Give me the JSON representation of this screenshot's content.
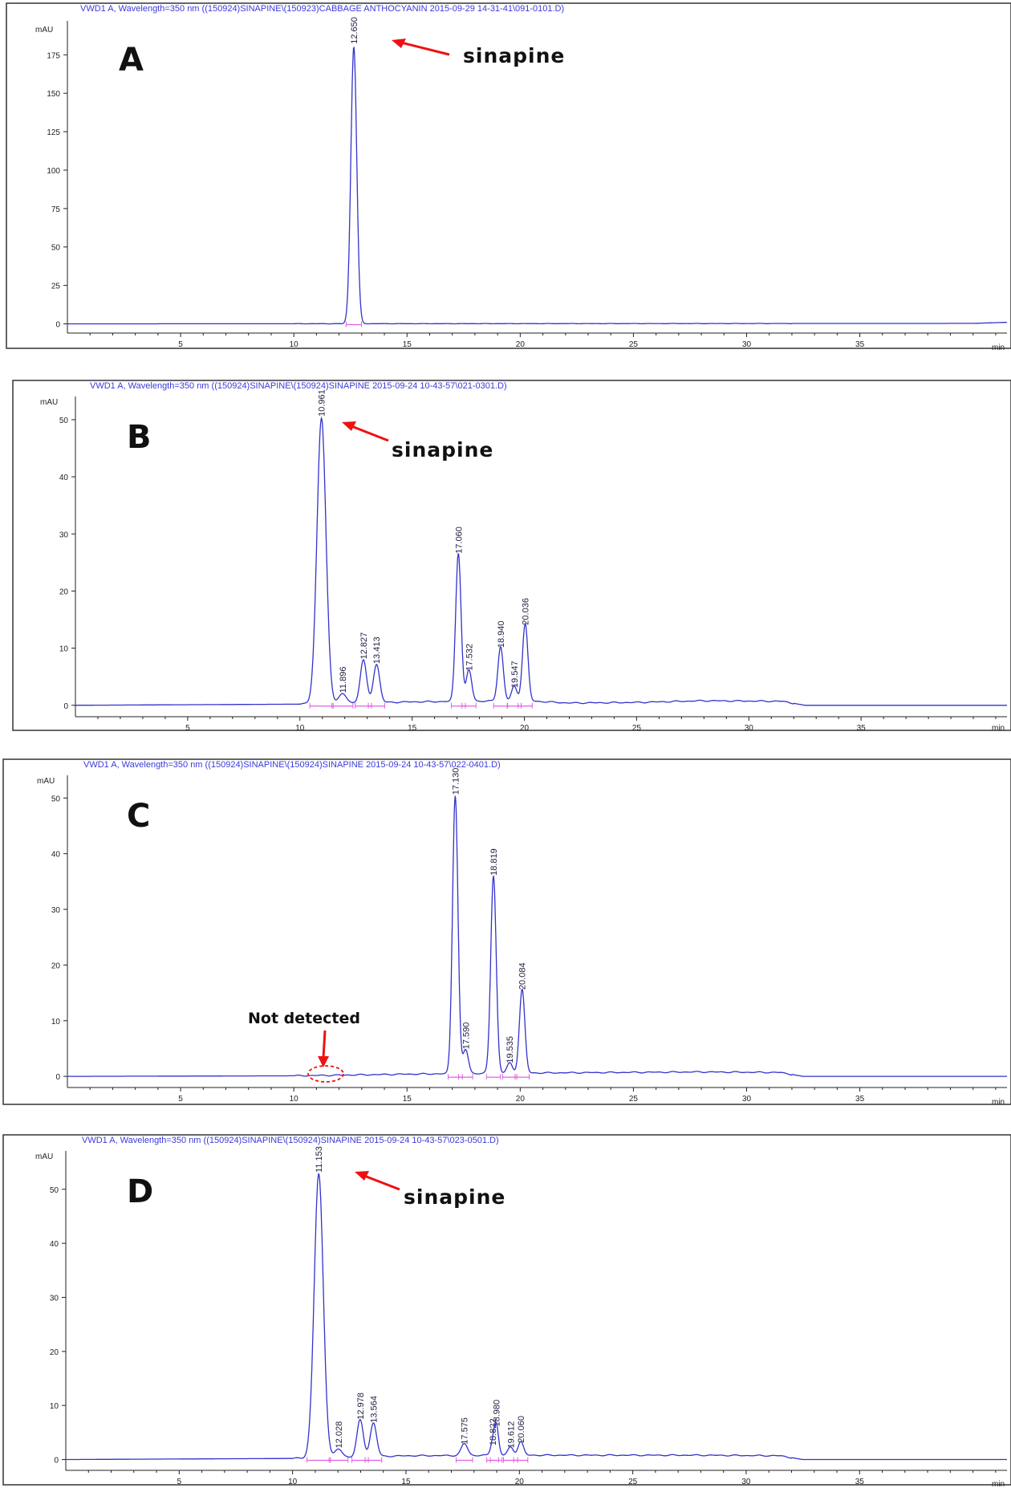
{
  "chart_data": [
    {
      "type": "line",
      "panel_label": "A",
      "title": "VWD1 A, Wavelength=350 nm ((150924)SINAPINE\\(150923)CABBAGE ANTHOCYANIN 2015-09-29 14-31-41\\091-0101.D)",
      "xlabel": "min",
      "ylabel": "mAU",
      "xlim": [
        0,
        41.5
      ],
      "ylim": [
        -6,
        195
      ],
      "xticks": [
        5,
        10,
        15,
        20,
        25,
        30,
        35
      ],
      "yticks": [
        0,
        25,
        50,
        75,
        100,
        125,
        150,
        175
      ],
      "peaks": [
        {
          "rt": 12.65,
          "height": 180,
          "width": 0.13,
          "label": "12.650"
        }
      ],
      "drift": [
        [
          0,
          0
        ],
        [
          40,
          0.3
        ],
        [
          41.5,
          1.0
        ]
      ],
      "annotations": [
        {
          "text": "sinapine",
          "arrow_to_rt": 12.65
        }
      ],
      "color": "#3333cc"
    },
    {
      "type": "line",
      "panel_label": "B",
      "title": "VWD1 A, Wavelength=350 nm ((150924)SINAPINE\\(150924)SINAPINE 2015-09-24 10-43-57\\021-0301.D)",
      "xlabel": "min",
      "ylabel": "mAU",
      "xlim": [
        0,
        41.5
      ],
      "ylim": [
        -2,
        53.5
      ],
      "xticks": [
        5,
        10,
        15,
        20,
        25,
        30,
        35
      ],
      "yticks": [
        0,
        10,
        20,
        30,
        40,
        50
      ],
      "peaks": [
        {
          "rt": 10.961,
          "height": 50,
          "width": 0.2,
          "label": "10.961"
        },
        {
          "rt": 11.896,
          "height": 1.6,
          "width": 0.18,
          "label": "11.896"
        },
        {
          "rt": 12.827,
          "height": 7.5,
          "width": 0.14,
          "label": "12.827"
        },
        {
          "rt": 13.413,
          "height": 6.7,
          "width": 0.14,
          "label": "13.413"
        },
        {
          "rt": 17.06,
          "height": 26,
          "width": 0.12,
          "label": "17.060"
        },
        {
          "rt": 17.532,
          "height": 5.5,
          "width": 0.12,
          "label": "17.532"
        },
        {
          "rt": 18.94,
          "height": 9.5,
          "width": 0.12,
          "label": "18.940"
        },
        {
          "rt": 19.547,
          "height": 2.5,
          "width": 0.12,
          "label": "19.547"
        },
        {
          "rt": 20.036,
          "height": 13.5,
          "width": 0.12,
          "label": "20.036"
        }
      ],
      "drift": [
        [
          0,
          0
        ],
        [
          10,
          0.2
        ],
        [
          15,
          0.6
        ],
        [
          20,
          0.8
        ],
        [
          22,
          0.4
        ],
        [
          25,
          0.5
        ],
        [
          28,
          0.8
        ],
        [
          31.5,
          0.7
        ],
        [
          32.5,
          0
        ],
        [
          41.5,
          0
        ]
      ],
      "annotations": [
        {
          "text": "sinapine",
          "arrow_to_rt": 10.961
        }
      ],
      "color": "#3333cc"
    },
    {
      "type": "line",
      "panel_label": "C",
      "title": "VWD1 A, Wavelength=350 nm ((150924)SINAPINE\\(150924)SINAPINE 2015-09-24 10-43-57\\022-0401.D)",
      "xlabel": "min",
      "ylabel": "mAU",
      "xlim": [
        0,
        41.5
      ],
      "ylim": [
        -2,
        53.5
      ],
      "xticks": [
        5,
        10,
        15,
        20,
        25,
        30,
        35
      ],
      "yticks": [
        0,
        10,
        20,
        30,
        40,
        50
      ],
      "peaks": [
        {
          "rt": 17.13,
          "height": 50,
          "width": 0.12,
          "label": "17.130"
        },
        {
          "rt": 17.59,
          "height": 4.3,
          "width": 0.12,
          "label": "17.590"
        },
        {
          "rt": 18.819,
          "height": 35.5,
          "width": 0.12,
          "label": "18.819"
        },
        {
          "rt": 19.535,
          "height": 1.8,
          "width": 0.12,
          "label": "19.535"
        },
        {
          "rt": 20.084,
          "height": 15,
          "width": 0.12,
          "label": "20.084"
        }
      ],
      "drift": [
        [
          0,
          0
        ],
        [
          10,
          0.1
        ],
        [
          15,
          0.4
        ],
        [
          20,
          0.6
        ],
        [
          28,
          0.8
        ],
        [
          31.5,
          0.7
        ],
        [
          32.5,
          0
        ],
        [
          41.5,
          0
        ]
      ],
      "annotations": [
        {
          "text": "Not detected",
          "arrow_to_rt": 10.6
        }
      ],
      "color": "#3333cc"
    },
    {
      "type": "line",
      "panel_label": "D",
      "title": "VWD1 A, Wavelength=350 nm ((150924)SINAPINE\\(150924)SINAPINE 2015-09-24 10-43-57\\023-0501.D)",
      "xlabel": "min",
      "ylabel": "mAU",
      "xlim": [
        0,
        41.5
      ],
      "ylim": [
        -2,
        56.5
      ],
      "xticks": [
        5,
        10,
        15,
        20,
        25,
        30,
        35
      ],
      "yticks": [
        0,
        10,
        20,
        30,
        40,
        50
      ],
      "peaks": [
        {
          "rt": 11.153,
          "height": 52.5,
          "width": 0.2,
          "label": "11.153"
        },
        {
          "rt": 12.028,
          "height": 1.5,
          "width": 0.16,
          "label": "12.028"
        },
        {
          "rt": 12.978,
          "height": 6.8,
          "width": 0.14,
          "label": "12.978"
        },
        {
          "rt": 13.564,
          "height": 6.2,
          "width": 0.14,
          "label": "13.564"
        },
        {
          "rt": 17.575,
          "height": 2.2,
          "width": 0.14,
          "label": "17.575"
        },
        {
          "rt": 18.822,
          "height": 2.0,
          "width": 0.1,
          "label": "18.822"
        },
        {
          "rt": 18.98,
          "height": 5.5,
          "width": 0.1,
          "label": "18.980"
        },
        {
          "rt": 19.612,
          "height": 1.5,
          "width": 0.12,
          "label": "19.612"
        },
        {
          "rt": 20.06,
          "height": 2.5,
          "width": 0.12,
          "label": "20.060"
        }
      ],
      "drift": [
        [
          0,
          0
        ],
        [
          10,
          0.2
        ],
        [
          15,
          0.7
        ],
        [
          20,
          0.8
        ],
        [
          28,
          0.8
        ],
        [
          31.5,
          0.7
        ],
        [
          32.5,
          0
        ],
        [
          41.5,
          0
        ]
      ],
      "annotations": [
        {
          "text": "sinapine",
          "arrow_to_rt": 11.153
        }
      ],
      "color": "#3333cc"
    }
  ]
}
